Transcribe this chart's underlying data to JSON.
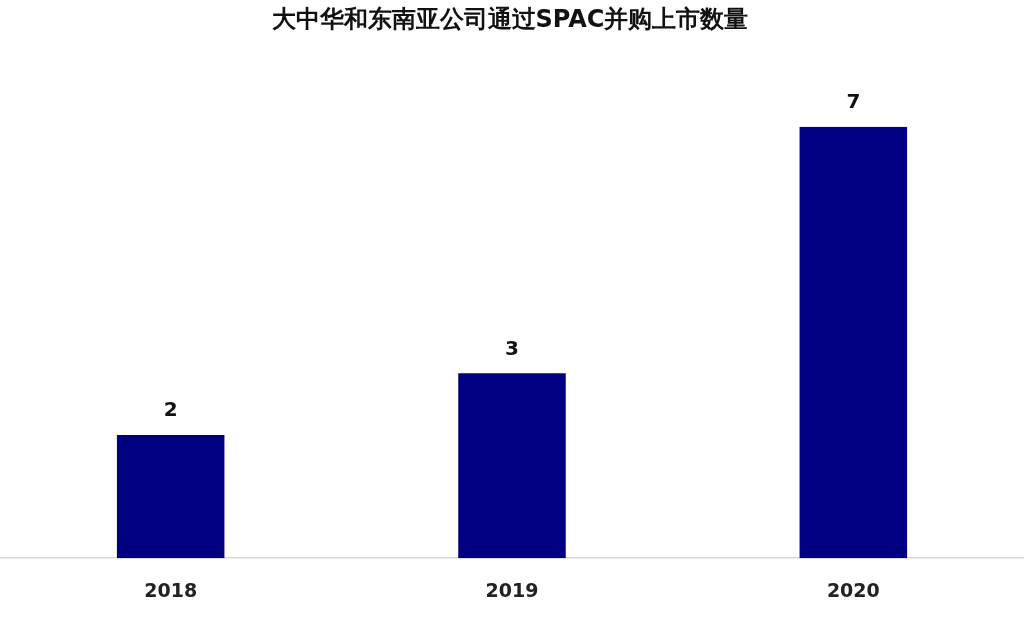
{
  "chart_data": {
    "type": "bar",
    "title": "大中华和东南亚公司通过SPAC并购上市数量",
    "categories": [
      "2018",
      "2019",
      "2020"
    ],
    "values": [
      2,
      3,
      7
    ],
    "color": "#000080",
    "data_labels": true,
    "grid": false,
    "legend": false
  }
}
